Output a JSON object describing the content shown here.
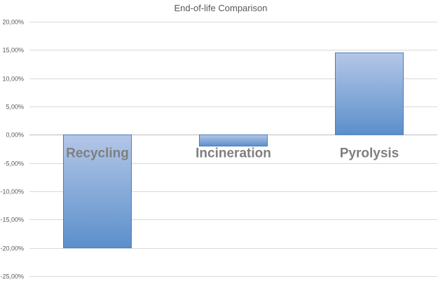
{
  "chart_data": {
    "type": "bar",
    "title": "End-of-life Comparison",
    "categories": [
      "Recycling",
      "Incineration",
      "Pyrolysis"
    ],
    "values": [
      -0.2,
      -0.02,
      0.145
    ],
    "ylim": [
      -0.25,
      0.2
    ],
    "yticks": [
      0.2,
      0.15,
      0.1,
      0.05,
      0.0,
      -0.05,
      -0.1,
      -0.15,
      -0.2,
      -0.25
    ],
    "ytick_labels": [
      "20,00%",
      "15,00%",
      "10,00%",
      "5,00%",
      "0,00%",
      "-5,00%",
      "-10,00%",
      "-15,00%",
      "-20,00%",
      "-25,00%"
    ],
    "xlabel": "",
    "ylabel": "",
    "grid": true,
    "legend": "none",
    "colors": {
      "bar_top": "#b4c7e7",
      "bar_bottom": "#5b8fcb",
      "bar_edge": "#4a7ebb"
    }
  }
}
